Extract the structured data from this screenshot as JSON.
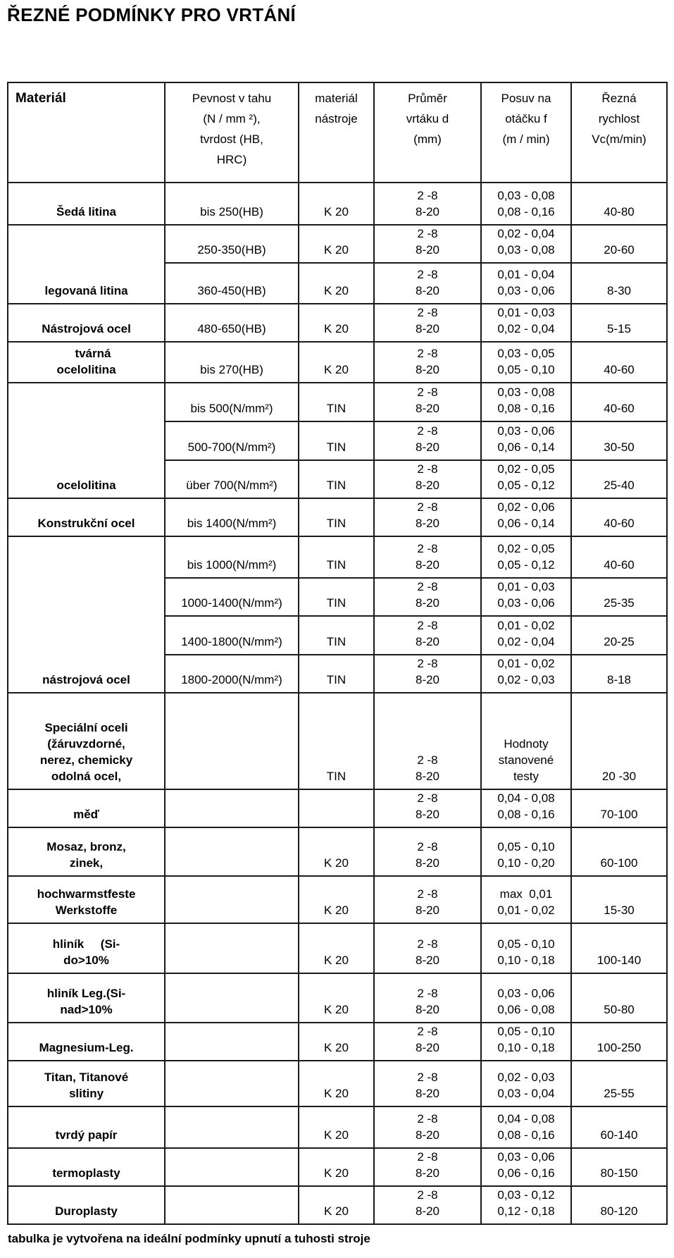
{
  "title": "ŘEZNÉ PODMÍNKY PRO VRTÁNÍ",
  "footer_note": "tabulka je vytvořena na ideální podmínky upnutí a tuhosti stroje",
  "colors": {
    "background": "#ffffff",
    "text": "#000000",
    "border": "#1b1b1b"
  },
  "table": {
    "headers": [
      "Materiál",
      "Pevnost v tahu\n(N / mm ²),\ntvrdost (HB,\nHRC)",
      "materiál\nnástroje",
      "Průměr\nvrtáku d\n(mm)",
      "Posuv na\notáčku f\n(m / min)",
      "Řezná\nrychlost\nVc(m/min)"
    ],
    "rows": [
      {
        "material": "Šedá litina",
        "rowspan": 1,
        "strength": "bis 250(HB)",
        "tool": "K 20",
        "diameter": "2 -8\n8-20",
        "feed": "0,03 - 0,08\n0,08 - 0,16",
        "speed": "40-80"
      },
      {
        "material": "legovaná litina",
        "rowspan": 2,
        "strength": "250-350(HB)",
        "tool": "K 20",
        "diameter": "2 -8\n8-20",
        "feed": "0,02 - 0,04\n0,03 - 0,08",
        "speed": "20-60"
      },
      {
        "material": null,
        "strength": "360-450(HB)",
        "tool": "K 20",
        "diameter": "2 -8\n8-20",
        "feed": "0,01 - 0,04\n0,03 - 0,06",
        "speed": "8-30"
      },
      {
        "material": "Nástrojová ocel",
        "rowspan": 1,
        "strength": "480-650(HB)",
        "tool": "K 20",
        "diameter": "2 -8\n8-20",
        "feed": "0,01 - 0,03\n0,02 - 0,04",
        "speed": "5-15"
      },
      {
        "material": "    tvárná\nocelolitina",
        "rowspan": 1,
        "strength": "bis 270(HB)",
        "tool": "K 20",
        "diameter": "2 -8\n8-20",
        "feed": "0,03 - 0,05\n0,05 - 0,10",
        "speed": "40-60"
      },
      {
        "material": "ocelolitina",
        "rowspan": 3,
        "strength": "bis 500(N/mm²)",
        "tool": "TIN",
        "diameter": "2 -8\n8-20",
        "feed": "0,03 - 0,08\n0,08 - 0,16",
        "speed": "40-60"
      },
      {
        "material": null,
        "strength": "500-700(N/mm²)",
        "tool": "TIN",
        "diameter": "2 -8\n8-20",
        "feed": "0,03 - 0,06\n0,06 - 0,14",
        "speed": "30-50"
      },
      {
        "material": null,
        "strength": "über 700(N/mm²)",
        "tool": "TIN",
        "diameter": "2 -8\n8-20",
        "feed": "0,02 - 0,05\n0,05 - 0,12",
        "speed": "25-40"
      },
      {
        "material": "Konstrukční ocel",
        "rowspan": 1,
        "strength": "bis 1400(N/mm²)",
        "tool": "TIN",
        "diameter": "2 -8\n8-20",
        "feed": "0,02 - 0,06\n0,06 - 0,14",
        "speed": "40-60"
      },
      {
        "material": "nástrojová ocel",
        "rowspan": 4,
        "strength": "bis 1000(N/mm²)",
        "tool": "TIN",
        "diameter": "2 -8\n8-20",
        "feed": "0,02 - 0,05\n0,05 - 0,12",
        "speed": "40-60"
      },
      {
        "material": null,
        "strength": "1000-1400(N/mm²)",
        "tool": "TIN",
        "diameter": "2 -8\n8-20",
        "feed": "0,01 - 0,03\n0,03 - 0,06",
        "speed": "25-35"
      },
      {
        "material": null,
        "strength": "1400-1800(N/mm²)",
        "tool": "TIN",
        "diameter": "2 -8\n8-20",
        "feed": "0,01 - 0,02\n0,02 - 0,04",
        "speed": "20-25"
      },
      {
        "material": null,
        "strength": "1800-2000(N/mm²)",
        "tool": "TIN",
        "diameter": "2 -8\n8-20",
        "feed": "0,01 - 0,02\n0,02 - 0,03",
        "speed": "8-18"
      },
      {
        "material": "Speciální oceli\n(žáruvzdorné,\nnerez, chemicky\nodolná ocel,",
        "rowspan": 1,
        "material_top": true,
        "strength": "",
        "tool": "TIN",
        "diameter": "2 -8\n8-20",
        "feed": "Hodnoty\nstanovené\ntesty",
        "feed_small": true,
        "speed": "20 -30"
      },
      {
        "material": "měď",
        "rowspan": 1,
        "strength": "",
        "tool": "",
        "diameter": "2 -8\n8-20",
        "feed": "0,04 - 0,08\n0,08 - 0,16",
        "speed": "70-100"
      },
      {
        "material": "Mosaz, bronz,\nzinek,",
        "rowspan": 1,
        "strength": "",
        "tool": "K 20",
        "diameter": "2 -8\n8-20",
        "feed": "0,05 - 0,10\n0,10 - 0,20",
        "speed": "60-100"
      },
      {
        "material": "hochwarmstfeste\nWerkstoffe",
        "rowspan": 1,
        "strength": "",
        "tool": "K 20",
        "diameter": "2 -8\n8-20",
        "feed": "max  0,01\n0,01 - 0,02",
        "speed": "15-30"
      },
      {
        "material": "hliník     (Si-\ndo>10%",
        "rowspan": 1,
        "strength": "",
        "tool": "K 20",
        "diameter": "2 -8\n8-20",
        "feed": "0,05 - 0,10\n0,10 - 0,18",
        "speed": "100-140"
      },
      {
        "material": "hliník Leg.(Si-\nnad>10%",
        "rowspan": 1,
        "strength": "",
        "tool": "K 20",
        "diameter": "2 -8\n8-20",
        "feed": "0,03 - 0,06\n0,06 - 0,08",
        "speed": "50-80"
      },
      {
        "material": "Magnesium-Leg.",
        "rowspan": 1,
        "strength": "",
        "tool": "K 20",
        "diameter": "2 -8\n8-20",
        "feed": "0,05 - 0,10\n0,10 - 0,18",
        "speed": "100-250"
      },
      {
        "material": "Titan, Titanové\nslitiny",
        "rowspan": 1,
        "strength": "",
        "tool": "K 20",
        "diameter": "2 -8\n8-20",
        "feed": "0,02 - 0,03\n0,03 - 0,04",
        "speed": "25-55"
      },
      {
        "material": "tvrdý papír",
        "rowspan": 1,
        "strength": "",
        "tool": "K 20",
        "diameter": "2 -8\n8-20",
        "feed": "0,04 - 0,08\n0,08 - 0,16",
        "speed": "60-140"
      },
      {
        "material": "termoplasty",
        "rowspan": 1,
        "strength": "",
        "tool": "K 20",
        "diameter": "2 -8\n8-20",
        "feed": "0,03 - 0,06\n0,06 - 0,16",
        "speed": "80-150"
      },
      {
        "material": "Duroplasty",
        "rowspan": 1,
        "strength": "",
        "tool": "K 20",
        "diameter": "2 -8\n8-20",
        "feed": "0,03 - 0,12\n0,12 - 0,18",
        "speed": "80-120"
      }
    ]
  }
}
